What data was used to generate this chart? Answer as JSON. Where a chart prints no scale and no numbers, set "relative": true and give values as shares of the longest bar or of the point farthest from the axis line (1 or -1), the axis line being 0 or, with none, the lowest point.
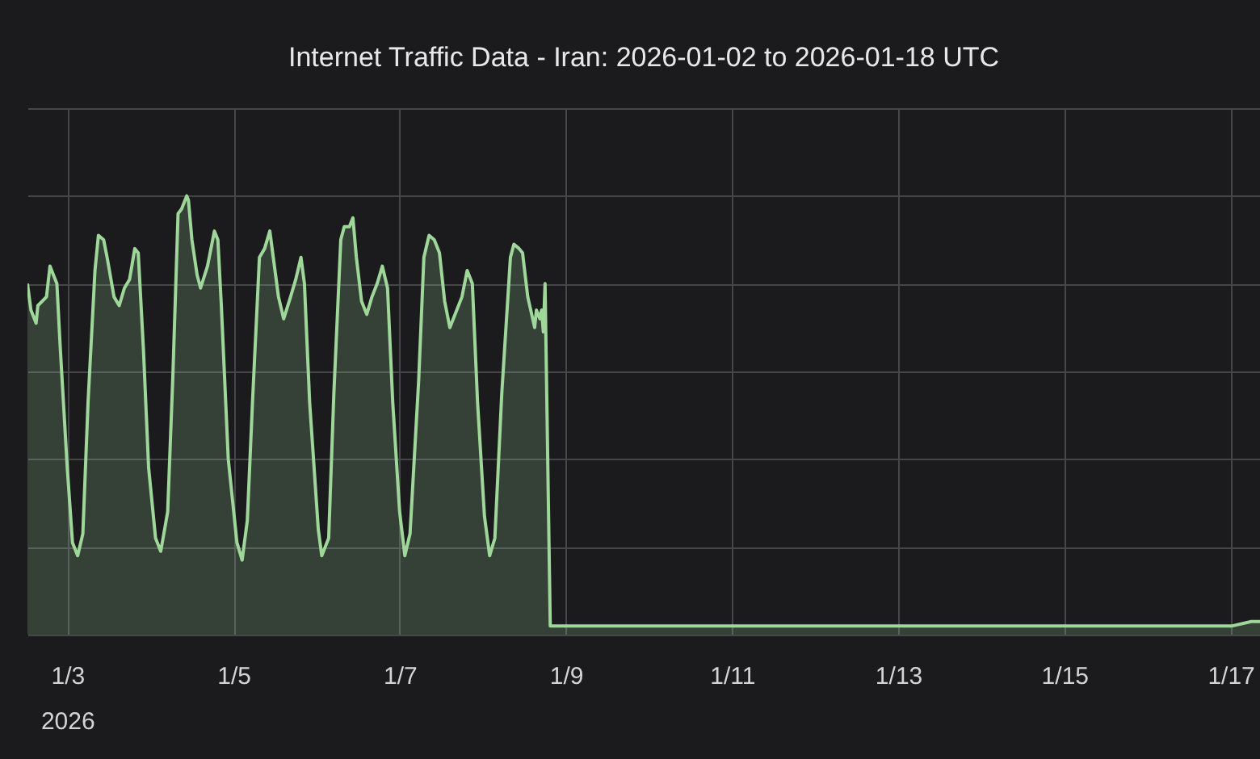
{
  "chart_data": {
    "type": "area",
    "title": "Internet Traffic Data - Iran: 2026-01-02 to 2026-01-18 UTC",
    "relative": true,
    "grid": true,
    "xlim": [
      "2026-01-02T12:30",
      "2026-01-17T08:30"
    ],
    "xticks": [
      {
        "value": "2026-01-03",
        "label": "1/3\n2026"
      },
      {
        "value": "2026-01-05",
        "label": "1/5"
      },
      {
        "value": "2026-01-07",
        "label": "1/7"
      },
      {
        "value": "2026-01-09",
        "label": "1/9"
      },
      {
        "value": "2026-01-11",
        "label": "1/11"
      },
      {
        "value": "2026-01-13",
        "label": "1/13"
      },
      {
        "value": "2026-01-15",
        "label": "1/15"
      },
      {
        "value": "2026-01-17",
        "label": "1/17"
      }
    ],
    "x": [
      "2026-01-02T12:30",
      "2026-01-02T13:30",
      "2026-01-02T15:00",
      "2026-01-02T15:30",
      "2026-01-02T18:00",
      "2026-01-02T19:00",
      "2026-01-02T20:00",
      "2026-01-02T21:00",
      "2026-01-02T22:00",
      "2026-01-03T00:00",
      "2026-01-03T01:30",
      "2026-01-03T03:00",
      "2026-01-03T04:30",
      "2026-01-03T06:00",
      "2026-01-03T08:00",
      "2026-01-03T09:00",
      "2026-01-03T10:30",
      "2026-01-03T11:30",
      "2026-01-03T13:30",
      "2026-01-03T15:00",
      "2026-01-03T16:30",
      "2026-01-03T18:00",
      "2026-01-03T19:30",
      "2026-01-03T20:30",
      "2026-01-03T22:00",
      "2026-01-03T23:30",
      "2026-01-04T01:30",
      "2026-01-04T03:00",
      "2026-01-04T05:00",
      "2026-01-04T06:30",
      "2026-01-04T08:00",
      "2026-01-04T09:00",
      "2026-01-04T10:30",
      "2026-01-04T11:00",
      "2026-01-04T12:00",
      "2026-01-04T13:30",
      "2026-01-04T14:30",
      "2026-01-04T16:30",
      "2026-01-04T18:30",
      "2026-01-04T19:30",
      "2026-01-04T20:30",
      "2026-01-04T22:30",
      "2026-01-05T01:00",
      "2026-01-05T02:30",
      "2026-01-05T04:00",
      "2026-01-05T05:30",
      "2026-01-05T07:30",
      "2026-01-05T09:00",
      "2026-01-05T10:30",
      "2026-01-05T11:30",
      "2026-01-05T13:00",
      "2026-01-05T14:30",
      "2026-01-05T16:30",
      "2026-01-05T18:00",
      "2026-01-05T19:30",
      "2026-01-05T20:30",
      "2026-01-05T22:00",
      "2026-01-06T00:30",
      "2026-01-06T01:30",
      "2026-01-06T03:30",
      "2026-01-06T05:00",
      "2026-01-06T07:00",
      "2026-01-06T08:00",
      "2026-01-06T09:30",
      "2026-01-06T10:30",
      "2026-01-06T11:30",
      "2026-01-06T13:00",
      "2026-01-06T14:30",
      "2026-01-06T16:00",
      "2026-01-06T17:30",
      "2026-01-06T19:00",
      "2026-01-06T20:30",
      "2026-01-06T22:00",
      "2026-01-07T00:00",
      "2026-01-07T01:30",
      "2026-01-07T03:00",
      "2026-01-07T05:30",
      "2026-01-07T07:00",
      "2026-01-07T08:30",
      "2026-01-07T10:00",
      "2026-01-07T11:30",
      "2026-01-07T13:00",
      "2026-01-07T14:30",
      "2026-01-07T16:30",
      "2026-01-07T18:00",
      "2026-01-07T19:30",
      "2026-01-07T21:00",
      "2026-01-07T22:30",
      "2026-01-08T00:30",
      "2026-01-08T02:00",
      "2026-01-08T03:30",
      "2026-01-08T05:30",
      "2026-01-08T08:00",
      "2026-01-08T09:00",
      "2026-01-08T10:30",
      "2026-01-08T11:30",
      "2026-01-08T13:00",
      "2026-01-08T15:00",
      "2026-01-08T15:30",
      "2026-01-08T16:30",
      "2026-01-08T17:00",
      "2026-01-08T17:30",
      "2026-01-08T18:00",
      "2026-01-08T19:30",
      "2026-01-09T12:00",
      "2026-01-10T12:00",
      "2026-01-11T12:00",
      "2026-01-12T12:00",
      "2026-01-13T12:00",
      "2026-01-14T12:00",
      "2026-01-15T12:00",
      "2026-01-16T12:00",
      "2026-01-17T00:30",
      "2026-01-17T06:00",
      "2026-01-17T08:30"
    ],
    "series": [
      {
        "color": "#9fd69a",
        "values": [
          0.8,
          0.74,
          0.71,
          0.75,
          0.77,
          0.84,
          0.82,
          0.8,
          0.65,
          0.38,
          0.21,
          0.18,
          0.23,
          0.53,
          0.83,
          0.91,
          0.9,
          0.86,
          0.77,
          0.75,
          0.79,
          0.81,
          0.88,
          0.87,
          0.65,
          0.38,
          0.22,
          0.19,
          0.28,
          0.59,
          0.96,
          0.97,
          1.0,
          0.99,
          0.9,
          0.82,
          0.79,
          0.84,
          0.92,
          0.9,
          0.75,
          0.4,
          0.21,
          0.17,
          0.26,
          0.53,
          0.86,
          0.88,
          0.92,
          0.86,
          0.77,
          0.72,
          0.77,
          0.81,
          0.86,
          0.8,
          0.53,
          0.24,
          0.18,
          0.22,
          0.55,
          0.9,
          0.93,
          0.93,
          0.95,
          0.86,
          0.76,
          0.73,
          0.77,
          0.8,
          0.84,
          0.79,
          0.53,
          0.28,
          0.18,
          0.23,
          0.58,
          0.86,
          0.91,
          0.9,
          0.87,
          0.76,
          0.7,
          0.74,
          0.77,
          0.83,
          0.8,
          0.53,
          0.27,
          0.18,
          0.22,
          0.55,
          0.86,
          0.89,
          0.88,
          0.87,
          0.77,
          0.7,
          0.74,
          0.72,
          0.74,
          0.69,
          0.8,
          0.02,
          0.02,
          0.02,
          0.02,
          0.02,
          0.02,
          0.02,
          0.02,
          0.02,
          0.02,
          0.03,
          0.03
        ]
      }
    ]
  }
}
